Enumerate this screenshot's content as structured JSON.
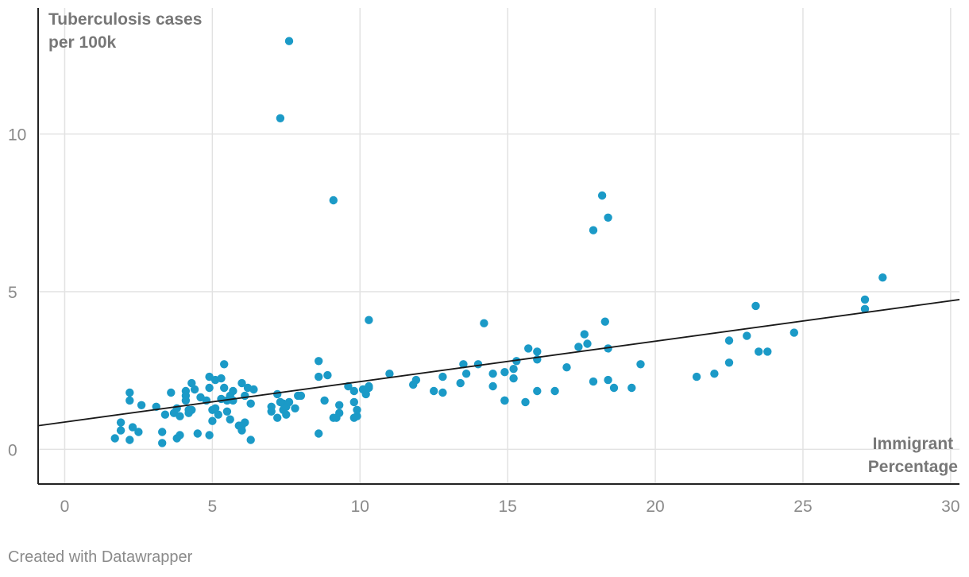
{
  "chart_data": {
    "type": "scatter",
    "ylabel_lines": [
      "Tuberculosis cases",
      "per 100k"
    ],
    "xlabel_lines": [
      "Immigrant",
      "Percentage"
    ],
    "xlim": [
      -0.9,
      30.3
    ],
    "ylim": [
      -1.1,
      14
    ],
    "x_ticks": [
      0,
      5,
      10,
      15,
      20,
      25,
      30
    ],
    "y_ticks": [
      0,
      5,
      10
    ],
    "grid": true,
    "colors": {
      "point": "#1b9ac7",
      "trend": "#1a1a1a",
      "grid": "#e2e2e2",
      "tick_text": "#8a8a8a",
      "axis_label": "#777777"
    },
    "trendline": {
      "x": [
        -0.9,
        30.3
      ],
      "y": [
        0.75,
        4.75
      ]
    },
    "points": [
      [
        1.7,
        0.35
      ],
      [
        1.9,
        0.6
      ],
      [
        1.9,
        0.85
      ],
      [
        2.2,
        0.3
      ],
      [
        2.2,
        1.55
      ],
      [
        2.2,
        1.8
      ],
      [
        2.3,
        0.7
      ],
      [
        2.5,
        0.55
      ],
      [
        2.6,
        1.4
      ],
      [
        3.1,
        1.35
      ],
      [
        3.3,
        0.55
      ],
      [
        3.3,
        0.2
      ],
      [
        3.4,
        1.1
      ],
      [
        3.6,
        1.8
      ],
      [
        3.7,
        1.15
      ],
      [
        3.8,
        1.3
      ],
      [
        3.8,
        0.35
      ],
      [
        3.9,
        0.45
      ],
      [
        3.9,
        1.05
      ],
      [
        4.1,
        1.85
      ],
      [
        4.1,
        1.7
      ],
      [
        4.1,
        1.55
      ],
      [
        4.2,
        1.25
      ],
      [
        4.2,
        1.15
      ],
      [
        4.3,
        1.25
      ],
      [
        4.3,
        2.1
      ],
      [
        4.4,
        1.9
      ],
      [
        4.5,
        0.5
      ],
      [
        4.6,
        1.65
      ],
      [
        4.8,
        1.55
      ],
      [
        4.9,
        1.95
      ],
      [
        4.9,
        2.3
      ],
      [
        4.9,
        0.45
      ],
      [
        5.0,
        1.25
      ],
      [
        5.0,
        0.9
      ],
      [
        5.1,
        2.2
      ],
      [
        5.1,
        1.3
      ],
      [
        5.2,
        1.1
      ],
      [
        5.3,
        1.6
      ],
      [
        5.3,
        2.25
      ],
      [
        5.4,
        1.95
      ],
      [
        5.4,
        2.7
      ],
      [
        5.5,
        1.55
      ],
      [
        5.5,
        1.2
      ],
      [
        5.6,
        1.7
      ],
      [
        5.6,
        0.95
      ],
      [
        5.7,
        1.55
      ],
      [
        5.7,
        1.85
      ],
      [
        5.9,
        0.75
      ],
      [
        6.0,
        0.6
      ],
      [
        6.0,
        0.75
      ],
      [
        6.0,
        2.1
      ],
      [
        6.1,
        0.85
      ],
      [
        6.1,
        1.7
      ],
      [
        6.2,
        1.95
      ],
      [
        6.3,
        0.3
      ],
      [
        6.3,
        1.45
      ],
      [
        6.4,
        1.9
      ],
      [
        7.0,
        1.35
      ],
      [
        7.0,
        1.2
      ],
      [
        7.2,
        1.75
      ],
      [
        7.2,
        1.0
      ],
      [
        7.3,
        1.5
      ],
      [
        7.4,
        1.25
      ],
      [
        7.4,
        1.45
      ],
      [
        7.5,
        1.35
      ],
      [
        7.5,
        1.1
      ],
      [
        7.6,
        1.5
      ],
      [
        7.3,
        10.5
      ],
      [
        7.6,
        12.95
      ],
      [
        7.8,
        1.3
      ],
      [
        7.9,
        1.7
      ],
      [
        8.0,
        1.7
      ],
      [
        8.6,
        0.5
      ],
      [
        8.6,
        2.3
      ],
      [
        8.6,
        2.8
      ],
      [
        8.8,
        1.55
      ],
      [
        8.9,
        2.35
      ],
      [
        9.1,
        1.0
      ],
      [
        9.1,
        7.9
      ],
      [
        9.2,
        1.0
      ],
      [
        9.3,
        1.4
      ],
      [
        9.3,
        1.15
      ],
      [
        9.6,
        2.0
      ],
      [
        9.8,
        1.85
      ],
      [
        9.8,
        1.0
      ],
      [
        9.8,
        1.5
      ],
      [
        9.9,
        1.05
      ],
      [
        9.9,
        1.25
      ],
      [
        10.1,
        1.9
      ],
      [
        10.2,
        1.75
      ],
      [
        10.3,
        2.0
      ],
      [
        10.3,
        1.95
      ],
      [
        10.3,
        4.1
      ],
      [
        11.0,
        2.4
      ],
      [
        11.8,
        2.05
      ],
      [
        11.9,
        2.2
      ],
      [
        12.5,
        1.85
      ],
      [
        12.8,
        1.8
      ],
      [
        12.8,
        2.3
      ],
      [
        13.4,
        2.1
      ],
      [
        13.5,
        2.7
      ],
      [
        13.6,
        2.4
      ],
      [
        14.0,
        2.7
      ],
      [
        14.2,
        4.0
      ],
      [
        14.5,
        2.0
      ],
      [
        14.5,
        2.4
      ],
      [
        14.9,
        2.45
      ],
      [
        14.9,
        1.55
      ],
      [
        14.9,
        1.55
      ],
      [
        15.2,
        2.25
      ],
      [
        15.2,
        2.55
      ],
      [
        15.3,
        2.8
      ],
      [
        15.6,
        1.5
      ],
      [
        15.7,
        3.2
      ],
      [
        16.0,
        1.85
      ],
      [
        16.0,
        2.85
      ],
      [
        16.0,
        3.1
      ],
      [
        16.6,
        1.85
      ],
      [
        17.0,
        2.6
      ],
      [
        17.4,
        3.25
      ],
      [
        17.6,
        3.65
      ],
      [
        17.7,
        3.35
      ],
      [
        17.9,
        2.15
      ],
      [
        17.9,
        6.95
      ],
      [
        18.2,
        8.05
      ],
      [
        18.3,
        4.05
      ],
      [
        18.4,
        7.35
      ],
      [
        18.4,
        3.2
      ],
      [
        18.4,
        2.2
      ],
      [
        18.6,
        1.95
      ],
      [
        19.2,
        1.95
      ],
      [
        19.5,
        2.7
      ],
      [
        21.4,
        2.3
      ],
      [
        22.0,
        2.4
      ],
      [
        22.5,
        2.75
      ],
      [
        22.5,
        3.45
      ],
      [
        23.1,
        3.6
      ],
      [
        23.4,
        4.55
      ],
      [
        23.5,
        3.1
      ],
      [
        23.8,
        3.1
      ],
      [
        24.7,
        3.7
      ],
      [
        27.1,
        4.45
      ],
      [
        27.1,
        4.75
      ],
      [
        27.7,
        5.45
      ]
    ]
  },
  "footer": {
    "credit": "Created with Datawrapper"
  }
}
